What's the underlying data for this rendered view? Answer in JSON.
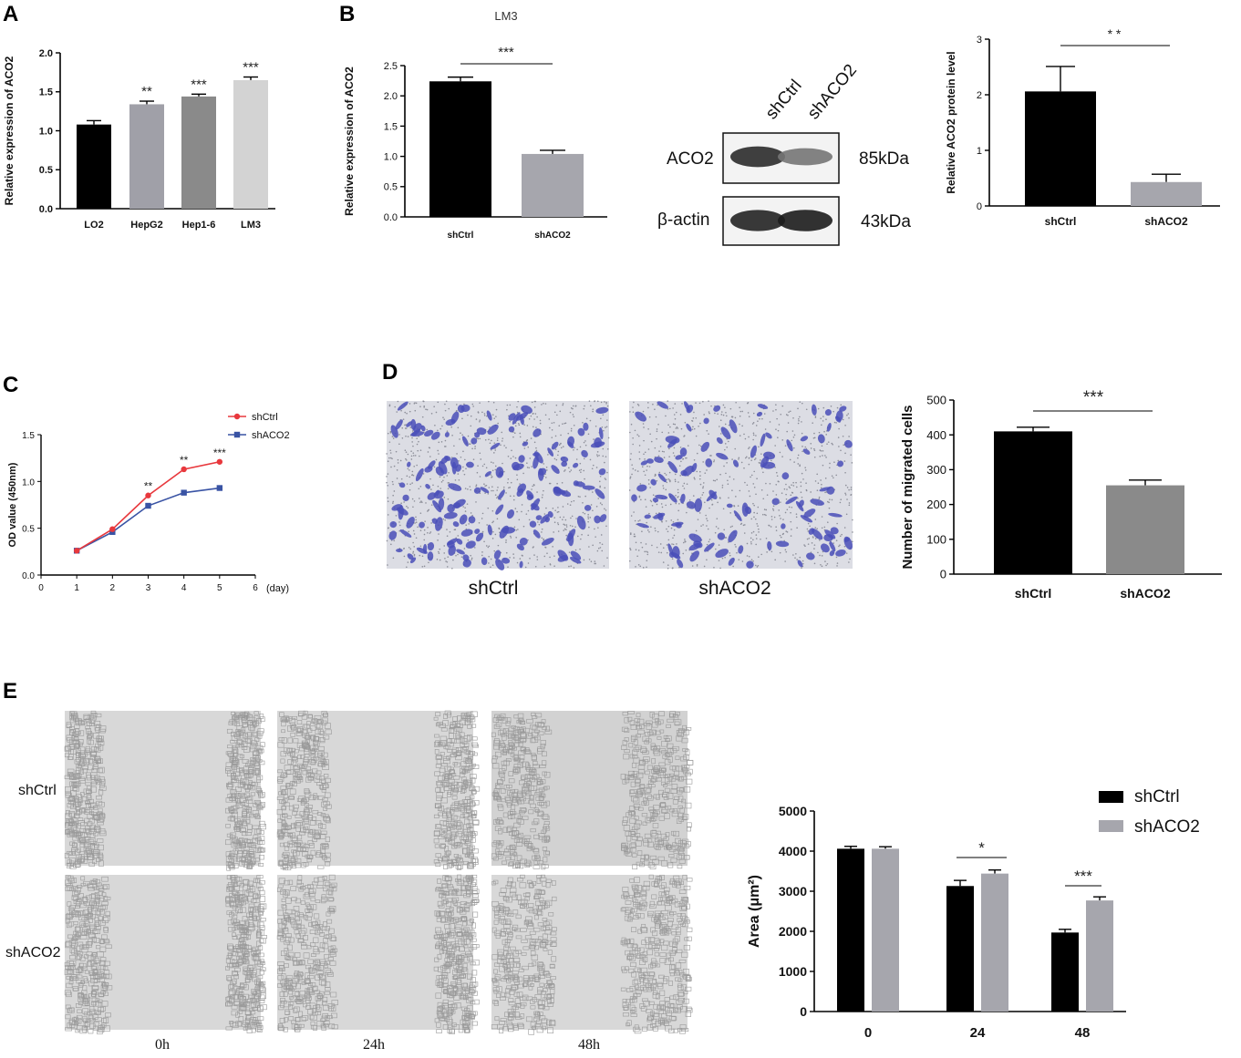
{
  "panels": {
    "A": "A",
    "B": "B",
    "C": "C",
    "D": "D",
    "E": "E"
  },
  "colors": {
    "black": "#000000",
    "grey1": "#a0a0a8",
    "grey2": "#8a8a8a",
    "grey3": "#d3d3d3",
    "grey_mid": "#a6a6ad",
    "red": "#e8383d",
    "blue": "#3953a4",
    "crystal_violet": "#4a4fb8"
  },
  "western_blot": {
    "lane_labels": [
      "shCtrl",
      "shACO2"
    ],
    "rows": [
      {
        "label": "ACO2",
        "size": "85kDa",
        "intensity": [
          0.85,
          0.35
        ]
      },
      {
        "label": "β-actin",
        "size": "43kDa",
        "intensity": [
          0.9,
          0.95
        ]
      }
    ]
  },
  "transwell": {
    "labels": [
      "shCtrl",
      "shACO2"
    ]
  },
  "wound": {
    "row_labels": [
      "shCtrl",
      "shACO2"
    ],
    "time_labels": [
      "0h",
      "24h",
      "48h"
    ]
  },
  "chart_data": [
    {
      "id": "A",
      "type": "bar",
      "title": "",
      "categories": [
        "LO2",
        "HepG2",
        "Hep1-6",
        "LM3"
      ],
      "values": [
        1.08,
        1.34,
        1.44,
        1.65
      ],
      "errors": [
        0.05,
        0.04,
        0.03,
        0.04
      ],
      "significance": [
        "",
        "**",
        "***",
        "***"
      ],
      "ylabel": "Relative expression of ACO2",
      "ylim": [
        0,
        2.0
      ],
      "yticks": [
        "0.0",
        "0.5",
        "1.0",
        "1.5",
        "2.0"
      ]
    },
    {
      "id": "B1",
      "type": "bar",
      "title": "LM3",
      "categories": [
        "shCtrl",
        "shACO2"
      ],
      "values": [
        2.24,
        1.04
      ],
      "errors": [
        0.07,
        0.06
      ],
      "bracket": "***",
      "ylabel": "Relative expression of ACO2",
      "ylim": [
        0,
        2.5
      ],
      "yticks": [
        "0.0",
        "0.5",
        "1.0",
        "1.5",
        "2.0",
        "2.5"
      ]
    },
    {
      "id": "B2",
      "type": "bar",
      "title": "",
      "categories": [
        "shCtrl",
        "shACO2"
      ],
      "values": [
        2.06,
        0.43
      ],
      "errors": [
        0.45,
        0.14
      ],
      "bracket": "* *",
      "ylabel": "Relative ACO2 protein level",
      "ylim": [
        0,
        3
      ],
      "yticks": [
        "0",
        "1",
        "2",
        "3"
      ]
    },
    {
      "id": "C",
      "type": "line",
      "title": "",
      "x": [
        1,
        2,
        3,
        4,
        5
      ],
      "series": [
        {
          "name": "shCtrl",
          "values": [
            0.26,
            0.49,
            0.85,
            1.13,
            1.21
          ]
        },
        {
          "name": "shACO2",
          "values": [
            0.26,
            0.46,
            0.74,
            0.88,
            0.93
          ]
        }
      ],
      "significance": [
        "",
        "",
        "**",
        "**",
        "***"
      ],
      "xlabel": "(day)",
      "ylabel": "OD value (450nm)",
      "xlim": [
        0,
        6
      ],
      "ylim": [
        0,
        1.5
      ],
      "xticks": [
        "0",
        "1",
        "2",
        "3",
        "4",
        "5",
        "6"
      ],
      "yticks": [
        "0.0",
        "0.5",
        "1.0",
        "1.5"
      ],
      "legend": "top-right"
    },
    {
      "id": "D",
      "type": "bar",
      "title": "",
      "categories": [
        "shCtrl",
        "shACO2"
      ],
      "values": [
        410,
        255
      ],
      "errors": [
        12,
        15
      ],
      "bracket": "***",
      "ylabel": "Number of migrated cells",
      "ylim": [
        0,
        500
      ],
      "yticks": [
        "0",
        "100",
        "200",
        "300",
        "400",
        "500"
      ]
    },
    {
      "id": "E",
      "type": "bar",
      "title": "",
      "categories": [
        "0",
        "24",
        "48"
      ],
      "series": [
        {
          "name": "shCtrl",
          "values": [
            4060,
            3130,
            1970
          ],
          "errors": [
            60,
            140,
            80
          ]
        },
        {
          "name": "shACO2",
          "values": [
            4060,
            3440,
            2770
          ],
          "errors": [
            50,
            90,
            90
          ]
        }
      ],
      "brackets": [
        "",
        "*",
        "***"
      ],
      "ylabel": "Area (μm²)",
      "ylim": [
        0,
        5000
      ],
      "yticks": [
        "0",
        "1000",
        "2000",
        "3000",
        "4000",
        "5000"
      ],
      "legend": "top-right"
    }
  ]
}
